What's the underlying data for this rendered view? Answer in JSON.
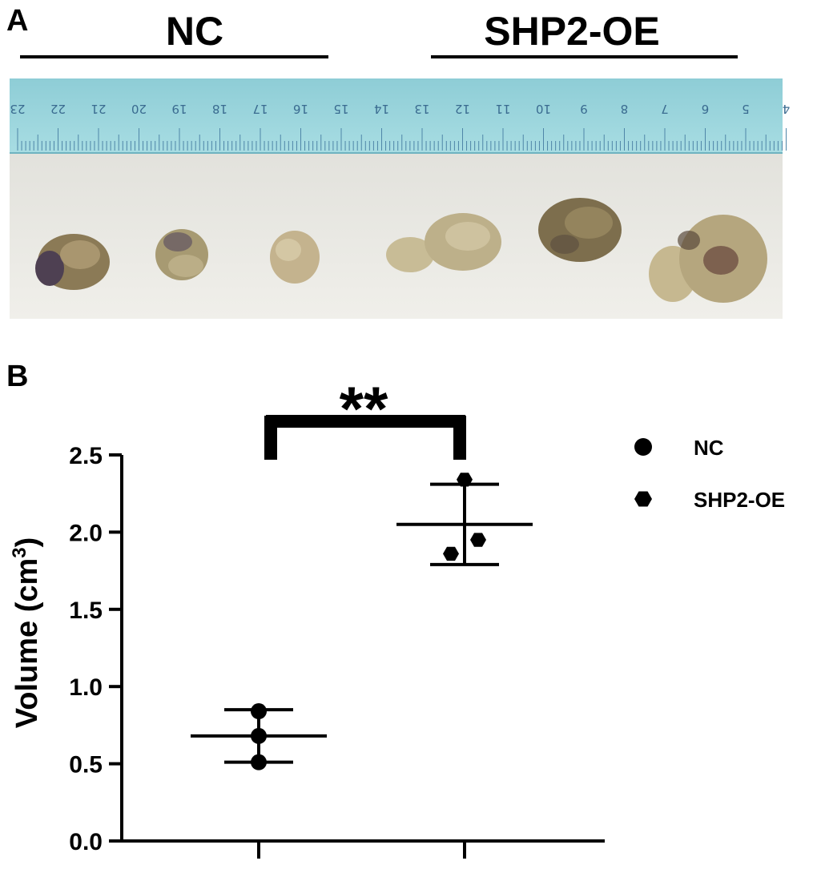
{
  "panel_a": {
    "letter": "A",
    "groups": [
      "NC",
      "SHP2-OE"
    ],
    "ruler_numbers": [
      "23",
      "22",
      "21",
      "20",
      "19",
      "18",
      "17",
      "16",
      "15",
      "14",
      "13",
      "12",
      "11",
      "10",
      "9",
      "8",
      "7",
      "6",
      "5",
      "4"
    ]
  },
  "panel_b": {
    "letter": "B",
    "significance": "**",
    "ylabel_main": "Volume (cm",
    "ylabel_sup": "3",
    "ylabel_end": ")"
  },
  "chart_data": {
    "type": "scatter",
    "title": "",
    "xlabel": "",
    "ylabel": "Volume (cm³)",
    "ylim": [
      0,
      2.5
    ],
    "yticks": [
      "0.0",
      "0.5",
      "1.0",
      "1.5",
      "2.0",
      "2.5"
    ],
    "grid": false,
    "legend_position": "top-right",
    "series": [
      {
        "name": "NC",
        "marker": "circle",
        "values": [
          0.84,
          0.68,
          0.51
        ],
        "mean": 0.68,
        "sd": 0.17
      },
      {
        "name": "SHP2-OE",
        "marker": "hexagon",
        "values": [
          2.34,
          1.95,
          1.86
        ],
        "mean": 2.05,
        "sd": 0.26
      }
    ]
  }
}
